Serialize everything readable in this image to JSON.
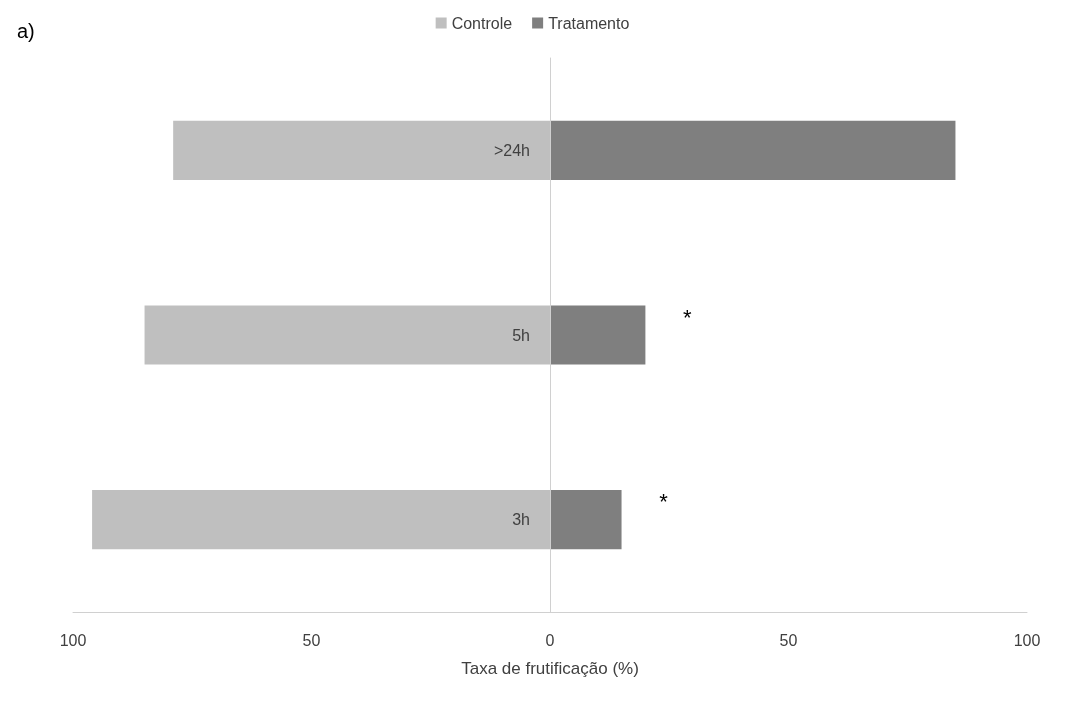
{
  "chart_data": {
    "type": "bar",
    "title": "a)",
    "xlabel": "Taxa de frutificação (%)",
    "orientation": "horizontal",
    "stacked": true,
    "categories": [
      ">24h",
      "5h",
      "3h"
    ],
    "series": [
      {
        "name": "Controle",
        "color": "#bfbfbf",
        "values": [
          -79,
          -85,
          -96
        ]
      },
      {
        "name": "Tratamento",
        "color": "#7f7f7f",
        "values": [
          85,
          20,
          15
        ]
      }
    ],
    "xlim": [
      -100,
      100
    ],
    "xticks": [
      {
        "value": -100,
        "label": "100"
      },
      {
        "value": -50,
        "label": "50"
      },
      0,
      50,
      100
    ],
    "annotations": [
      {
        "text": "*",
        "x": 20,
        "y": "5h"
      },
      {
        "text": "*",
        "x": 15,
        "y": "3h"
      }
    ],
    "grid": false,
    "legend": "top"
  }
}
